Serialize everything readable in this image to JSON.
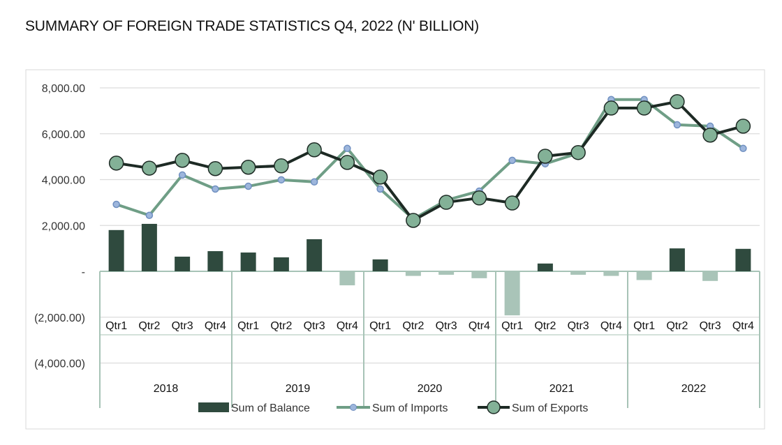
{
  "title": "SUMMARY OF FOREIGN TRADE STATISTICS Q4, 2022 (N' BILLION)",
  "chart_data": {
    "type": "bar+line",
    "title": "SUMMARY OF FOREIGN TRADE STATISTICS Q4, 2022 (N' BILLION)",
    "years": [
      "2018",
      "2019",
      "2020",
      "2021",
      "2022"
    ],
    "quarters": [
      "Qtr1",
      "Qtr2",
      "Qtr3",
      "Qtr4"
    ],
    "ylim": [
      -4000,
      8000
    ],
    "yticks": [
      8000,
      6000,
      4000,
      2000,
      0,
      -2000,
      -4000
    ],
    "ytick_labels": [
      "8,000.00",
      "6,000.00",
      "4,000.00",
      "2,000.00",
      "-",
      "(2,000.00)",
      "(4,000.00)"
    ],
    "grid": true,
    "legend_position": "bottom",
    "colors": {
      "balance_pos": "#2f4a3e",
      "balance_neg": "#a9c4b8",
      "imports_line": "#6f9e86",
      "imports_marker": "#9db6dc",
      "exports_line": "#1d2a24",
      "exports_marker": "#83b197"
    },
    "series": [
      {
        "name": "Sum of Balance",
        "type": "bar",
        "values": [
          1800,
          2070,
          640,
          880,
          820,
          610,
          1400,
          -610,
          520,
          -200,
          -150,
          -300,
          -1920,
          340,
          -150,
          -200,
          -380,
          1000,
          -420,
          980
        ]
      },
      {
        "name": "Sum of Imports",
        "type": "line",
        "values": [
          2920,
          2440,
          4200,
          3590,
          3710,
          3990,
          3900,
          5360,
          3590,
          2280,
          3100,
          3500,
          4840,
          4690,
          5150,
          7490,
          7490,
          6390,
          6330,
          5360
        ]
      },
      {
        "name": "Sum of Exports",
        "type": "line",
        "values": [
          4720,
          4500,
          4840,
          4480,
          4540,
          4600,
          5300,
          4750,
          4110,
          2220,
          3010,
          3200,
          2980,
          5020,
          5180,
          7120,
          7120,
          7400,
          5940,
          6330
        ]
      }
    ]
  }
}
